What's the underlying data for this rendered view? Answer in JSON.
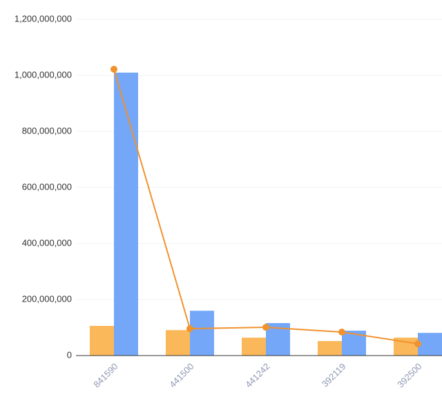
{
  "chart_data": {
    "type": "bar-line",
    "categories": [
      "841590",
      "441500",
      "441242",
      "392119",
      "392500"
    ],
    "series": [
      {
        "type": "bar",
        "color": "#fbb85a",
        "values": [
          106000000,
          91000000,
          64000000,
          52000000,
          64000000
        ]
      },
      {
        "type": "bar",
        "color": "#74a7f8",
        "values": [
          1010000000,
          160000000,
          116000000,
          89000000,
          81000000
        ]
      },
      {
        "type": "line",
        "color": "#f0922e",
        "values": [
          1022000000,
          96000000,
          101000000,
          84000000,
          42000000
        ]
      }
    ],
    "ylim": [
      0,
      1200000000
    ],
    "yticks": [
      0,
      {
        "value": 200000000,
        "label": "200,000,000"
      },
      {
        "value": 400000000,
        "label": "400,000,000"
      },
      {
        "value": 600000000,
        "label": "600,000,000"
      },
      {
        "value": 800000000,
        "label": "800,000,000"
      },
      {
        "value": 1000000000,
        "label": "1,000,000,000"
      },
      {
        "value": 1200000000,
        "label": "1,200,000,000"
      }
    ],
    "grid": true
  }
}
